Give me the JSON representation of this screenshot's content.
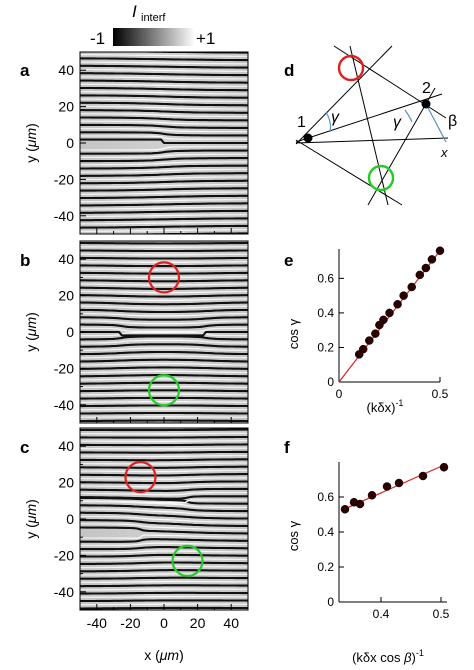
{
  "colorbar": {
    "title_main": "I",
    "title_sub": "interf",
    "min_label": "-1",
    "max_label": "+1"
  },
  "panel_letters": {
    "a": "a",
    "b": "b",
    "c": "c",
    "d": "d",
    "e": "e",
    "f": "f"
  },
  "fringe_panels": {
    "ylabel": "y (",
    "ylabel_unit": "μm",
    "ylabel_close": ")",
    "xlabel": "x (",
    "xlabel_unit": "μm",
    "xlabel_close": ")",
    "y_ticks": [
      "40",
      "20",
      "0",
      "-20",
      "-40"
    ],
    "x_ticks": [
      "-40",
      "-20",
      "0",
      "20",
      "40"
    ]
  },
  "diagram": {
    "point1_label": "1",
    "point2_label": "2",
    "gamma1": "γ",
    "gamma2": "γ",
    "beta": "β",
    "x_label": "x",
    "circle_colors": [
      "#e02020",
      "#22cc22"
    ]
  },
  "chart_data": [
    {
      "type": "scatter",
      "panel": "e",
      "xlabel": "(kδx)",
      "xlabel_sup": "-1",
      "ylabel": "cos γ",
      "xlim": [
        0,
        0.5
      ],
      "ylim": [
        0,
        0.77
      ],
      "x_ticks": [
        "0",
        "0.5"
      ],
      "y_ticks": [
        "0",
        "0.2",
        "0.4",
        "0.6"
      ],
      "x": [
        0.1,
        0.12,
        0.15,
        0.18,
        0.2,
        0.22,
        0.25,
        0.29,
        0.32,
        0.36,
        0.4,
        0.43,
        0.46,
        0.5
      ],
      "y": [
        0.16,
        0.19,
        0.24,
        0.28,
        0.33,
        0.36,
        0.4,
        0.45,
        0.5,
        0.55,
        0.62,
        0.66,
        0.71,
        0.76
      ],
      "fit": {
        "x": [
          0,
          0.5
        ],
        "y": [
          0,
          0.76
        ],
        "color": "#e02020"
      }
    },
    {
      "type": "scatter",
      "panel": "f",
      "xlabel": "(kδx cos ",
      "xlabel_beta": "β",
      "xlabel_close": ")",
      "xlabel_sup": "-1",
      "ylabel": "cos γ",
      "xlim": [
        0.33,
        0.51
      ],
      "ylim": [
        0,
        0.8
      ],
      "x_ticks": [
        "0.4",
        "0.5"
      ],
      "y_ticks": [
        "0",
        "0.2",
        "0.4",
        "0.6"
      ],
      "x": [
        0.34,
        0.355,
        0.365,
        0.385,
        0.41,
        0.43,
        0.47,
        0.505
      ],
      "y": [
        0.53,
        0.57,
        0.56,
        0.61,
        0.66,
        0.68,
        0.72,
        0.77
      ],
      "fit": {
        "x": [
          0.335,
          0.51
        ],
        "y": [
          0.525,
          0.79
        ],
        "color": "#e02020"
      }
    }
  ],
  "marker_circles": {
    "b": [
      {
        "x": 0,
        "y": 30,
        "color": "#e02020"
      },
      {
        "x": 0,
        "y": -32,
        "color": "#22cc22"
      }
    ],
    "c": [
      {
        "x": -14,
        "y": 23,
        "color": "#e02020"
      },
      {
        "x": 14,
        "y": -23,
        "color": "#22cc22"
      }
    ]
  }
}
